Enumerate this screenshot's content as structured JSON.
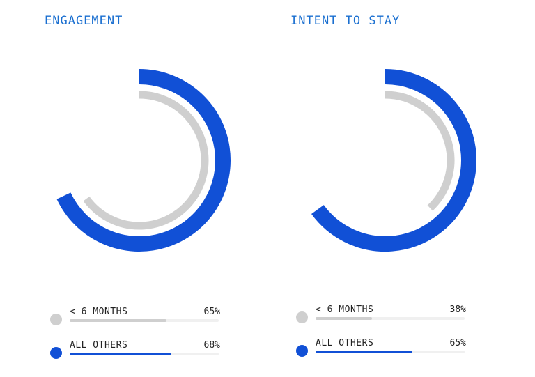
{
  "colors": {
    "short_tenure": "#cfcfcf",
    "all_others": "#1150d6",
    "title": "#1a6fd0"
  },
  "chart_data": [
    {
      "type": "radial-bar",
      "title": "ENGAGEMENT",
      "max": 100,
      "series": [
        {
          "name": "< 6 MONTHS",
          "value": 65,
          "label": "65%"
        },
        {
          "name": "ALL OTHERS",
          "value": 68,
          "label": "68%"
        }
      ]
    },
    {
      "type": "radial-bar",
      "title": "INTENT TO STAY",
      "max": 100,
      "series": [
        {
          "name": "< 6 MONTHS",
          "value": 38,
          "label": "38%"
        },
        {
          "name": "ALL OTHERS",
          "value": 65,
          "label": "65%"
        }
      ]
    }
  ]
}
